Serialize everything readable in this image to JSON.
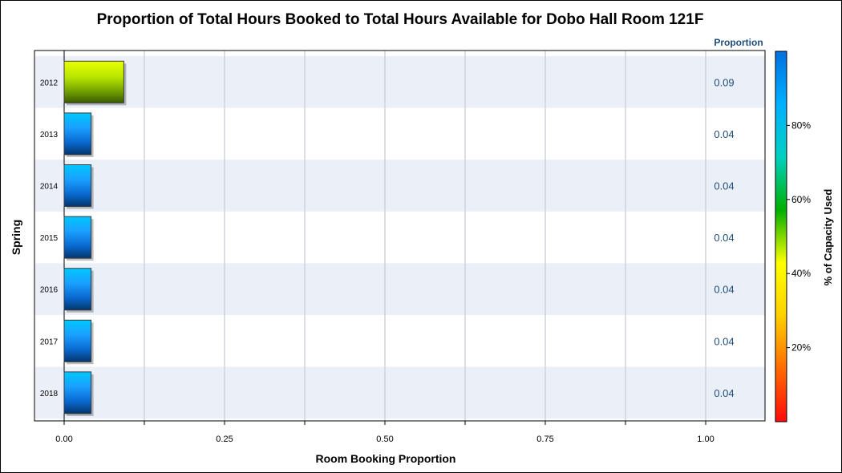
{
  "chart_data": {
    "type": "bar",
    "orientation": "horizontal",
    "title": "Proportion of Total Hours Booked to Total Hours Available for Dobo Hall Room 121F",
    "xlabel": "Room Booking Proportion",
    "ylabel": "Spring",
    "xlim": [
      0,
      1.0
    ],
    "x_ticks": [
      "0.00",
      "0.25",
      "0.50",
      "0.75",
      "1.00"
    ],
    "categories": [
      "2012",
      "2013",
      "2014",
      "2015",
      "2016",
      "2017",
      "2018"
    ],
    "values": [
      0.093,
      0.042,
      0.042,
      0.042,
      0.042,
      0.042,
      0.042
    ],
    "value_labels": [
      "0.09",
      "0.04",
      "0.04",
      "0.04",
      "0.04",
      "0.04",
      "0.04"
    ],
    "value_column_title": "Proportion",
    "color_response": [
      9.3,
      4.2,
      4.2,
      4.2,
      4.2,
      4.2,
      4.2
    ],
    "grid": true,
    "colorbar": {
      "title": "% of Capacity Used",
      "range": [
        0,
        100
      ],
      "ticks": [
        "20%",
        "40%",
        "60%",
        "80%"
      ],
      "tick_values": [
        20,
        40,
        60,
        80
      ],
      "colors": [
        "#ff0a0a",
        "#ff6a00",
        "#ffd000",
        "#ffff00",
        "#00b000",
        "#00d0c0",
        "#00b0ff",
        "#0070e0"
      ]
    },
    "bar_colors": {
      "highlight": "#a8e000",
      "normal": "#1e90ff"
    }
  }
}
